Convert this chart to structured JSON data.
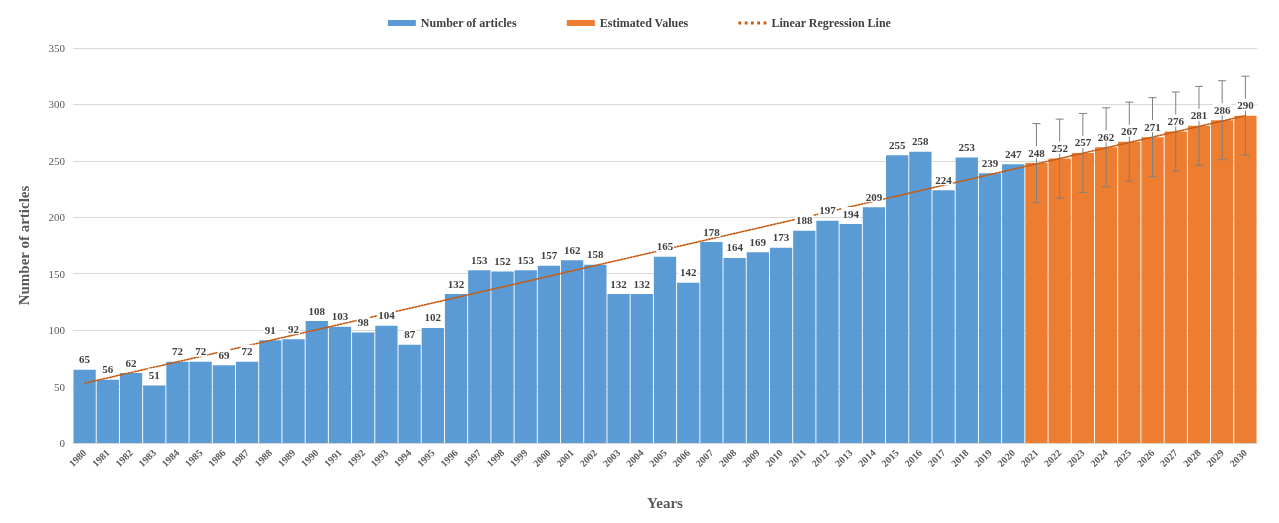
{
  "chart_data": {
    "type": "bar",
    "xlabel": "Years",
    "ylabel": "Number of articles",
    "categories": [
      "1980",
      "1981",
      "1982",
      "1983",
      "1984",
      "1985",
      "1986",
      "1987",
      "1988",
      "1989",
      "1990",
      "1991",
      "1992",
      "1993",
      "1994",
      "1995",
      "1996",
      "1997",
      "1998",
      "1999",
      "2000",
      "2001",
      "2002",
      "2003",
      "2004",
      "2005",
      "2006",
      "2007",
      "2008",
      "2009",
      "2010",
      "2011",
      "2012",
      "2013",
      "2014",
      "2015",
      "2016",
      "2017",
      "2018",
      "2019",
      "2020",
      "2021",
      "2022",
      "2023",
      "2024",
      "2025",
      "2026",
      "2027",
      "2028",
      "2029",
      "2030"
    ],
    "series": [
      {
        "name": "Number of articles",
        "color": "#5b9bd5",
        "values": [
          65,
          56,
          62,
          51,
          72,
          72,
          69,
          72,
          91,
          92,
          108,
          103,
          98,
          104,
          87,
          102,
          132,
          153,
          152,
          153,
          157,
          162,
          158,
          132,
          132,
          165,
          142,
          178,
          164,
          169,
          173,
          188,
          197,
          194,
          209,
          255,
          258,
          224,
          253,
          239,
          247,
          null,
          null,
          null,
          null,
          null,
          null,
          null,
          null,
          null,
          null
        ],
        "value_labels": [
          "65",
          "56",
          "62",
          "51",
          "72",
          "72",
          "69",
          "72",
          "91",
          "92",
          "108",
          "103",
          "98",
          "104",
          "87",
          "102",
          "132",
          "153",
          "152",
          "153",
          "157",
          "162",
          "158",
          "132",
          "132",
          "165",
          "142",
          "178",
          "164",
          "169",
          "173",
          "188",
          "197",
          "194",
          "209",
          "255",
          "258",
          "224",
          "253",
          "239",
          "247",
          null,
          null,
          null,
          null,
          null,
          null,
          null,
          null,
          null,
          null
        ]
      },
      {
        "name": "Estimated Values",
        "color": "#ed7d31",
        "values": [
          null,
          null,
          null,
          null,
          null,
          null,
          null,
          null,
          null,
          null,
          null,
          null,
          null,
          null,
          null,
          null,
          null,
          null,
          null,
          null,
          null,
          null,
          null,
          null,
          null,
          null,
          null,
          null,
          null,
          null,
          null,
          null,
          null,
          null,
          null,
          null,
          null,
          null,
          null,
          null,
          null,
          248,
          252,
          257,
          262,
          267,
          271,
          276,
          281,
          286,
          290
        ],
        "value_labels": [
          null,
          null,
          null,
          null,
          null,
          null,
          null,
          null,
          null,
          null,
          null,
          null,
          null,
          null,
          null,
          null,
          null,
          null,
          null,
          null,
          null,
          null,
          null,
          null,
          null,
          null,
          null,
          null,
          null,
          null,
          null,
          null,
          null,
          null,
          null,
          null,
          null,
          null,
          null,
          null,
          null,
          "248",
          "252",
          "257",
          "262",
          "267",
          "271",
          "276",
          "281",
          "286",
          "290"
        ],
        "errors": [
          null,
          null,
          null,
          null,
          null,
          null,
          null,
          null,
          null,
          null,
          null,
          null,
          null,
          null,
          null,
          null,
          null,
          null,
          null,
          null,
          null,
          null,
          null,
          null,
          null,
          null,
          null,
          null,
          null,
          null,
          null,
          null,
          null,
          null,
          null,
          null,
          null,
          null,
          null,
          null,
          null,
          35,
          35,
          35,
          35,
          35,
          35,
          35,
          35,
          35,
          35
        ]
      },
      {
        "name": "Linear Regression Line",
        "type": "line",
        "color": "#c55a11",
        "line_style": "dotted",
        "marker": "none",
        "values": [
          53,
          null,
          null,
          null,
          null,
          null,
          null,
          null,
          null,
          null,
          null,
          null,
          null,
          null,
          null,
          null,
          null,
          null,
          null,
          null,
          null,
          null,
          null,
          null,
          null,
          null,
          null,
          null,
          null,
          null,
          null,
          null,
          null,
          null,
          null,
          null,
          null,
          null,
          null,
          null,
          null,
          null,
          null,
          null,
          null,
          null,
          null,
          null,
          null,
          null,
          290
        ]
      }
    ],
    "ylim": [
      0,
      350
    ],
    "yticks": [
      0,
      50,
      100,
      150,
      200,
      250,
      300,
      350
    ],
    "grid": "y",
    "legend": "top"
  }
}
